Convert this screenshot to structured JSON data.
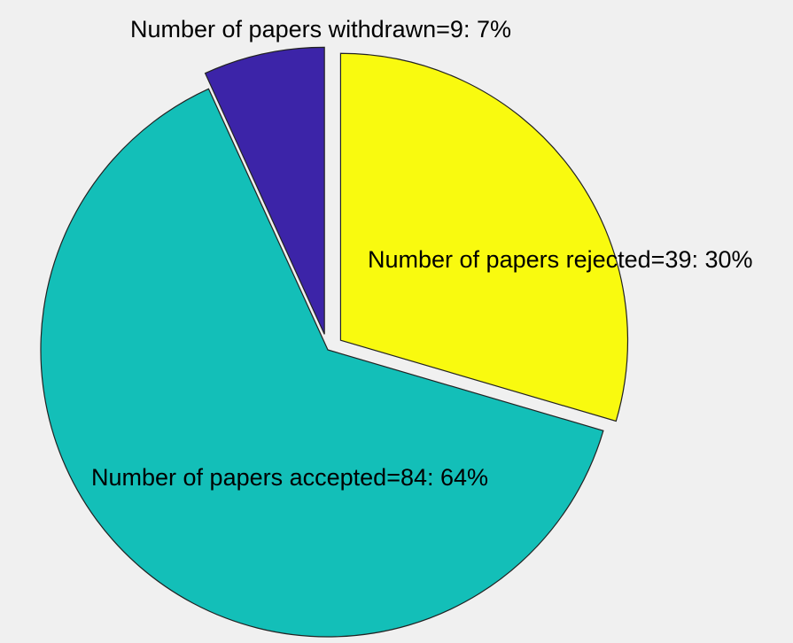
{
  "chart_data": {
    "type": "pie",
    "categories": [
      "Number of papers rejected",
      "Number of papers accepted",
      "Number of papers withdrawn"
    ],
    "values": [
      39,
      84,
      9
    ],
    "labels": [
      "Number of papers rejected=39: 30%",
      "Number of papers accepted=84: 64%",
      "Number of papers withdrawn=9: 7%"
    ],
    "colors": [
      "#f9fa0f",
      "#13bfb8",
      "#3c24a8"
    ],
    "exploded": [
      true,
      false,
      true
    ],
    "edge_color": "#222222",
    "start_angle_deg": 90,
    "direction": "clockwise"
  }
}
